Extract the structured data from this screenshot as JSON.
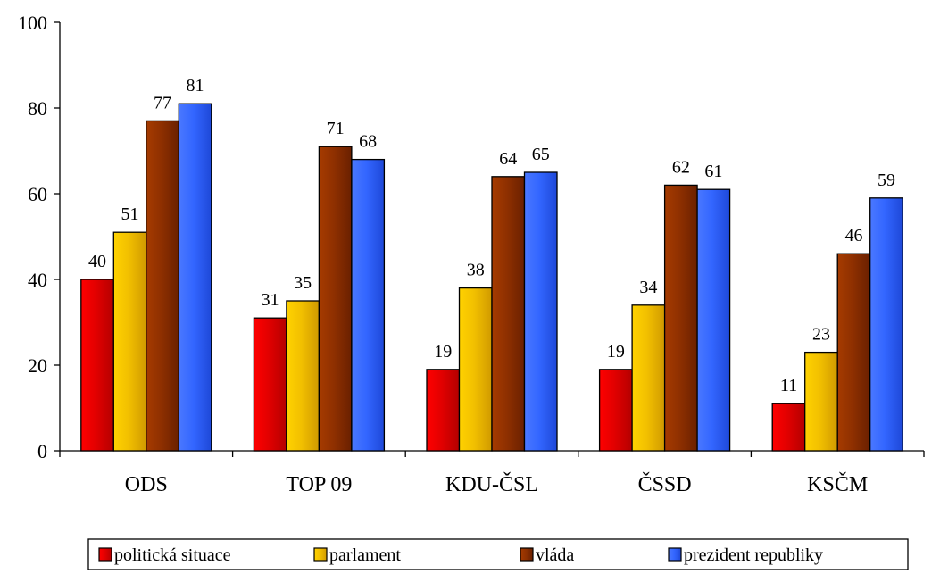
{
  "chart_data": {
    "type": "bar",
    "categories": [
      "ODS",
      "TOP 09",
      "KDU-ČSL",
      "ČSSD",
      "KSČM"
    ],
    "series": [
      {
        "name": "politická situace",
        "color": "#ff0000",
        "values": [
          40,
          31,
          19,
          19,
          11
        ]
      },
      {
        "name": "parlament",
        "color": "#ffcc00",
        "values": [
          51,
          35,
          38,
          34,
          23
        ]
      },
      {
        "name": "vláda",
        "color": "#993300",
        "values": [
          77,
          71,
          64,
          62,
          46
        ]
      },
      {
        "name": "prezident republiky",
        "color": "#3366ff",
        "values": [
          81,
          68,
          65,
          61,
          59
        ]
      }
    ],
    "ylim": [
      0,
      100
    ],
    "yticks": [
      0,
      20,
      40,
      60,
      80,
      100
    ],
    "data_labels": true,
    "grid": false,
    "legend": "bottom"
  }
}
